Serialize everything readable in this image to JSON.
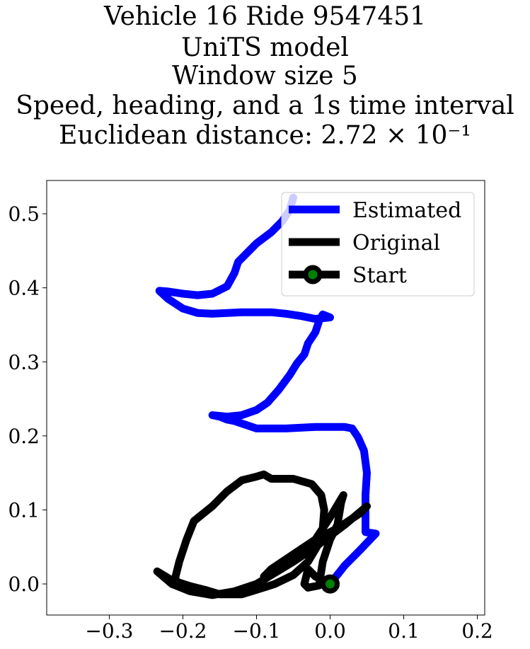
{
  "title_lines": [
    "Vehicle 16 Ride 9547451",
    "UniTS model",
    "Window size 5",
    "Speed, heading, and a 1s time interval",
    "Euclidean distance: 2.72 × 10⁻¹"
  ],
  "chart_data": {
    "type": "line",
    "title": "Vehicle 16 Ride 9547451 / UniTS model / Window size 5 / Speed, heading, and a 1s time interval / Euclidean distance: 2.72 × 10⁻¹",
    "xlabel": "",
    "ylabel": "",
    "xlim": [
      -0.385,
      0.21
    ],
    "ylim": [
      -0.042,
      0.545
    ],
    "xticks": [
      -0.3,
      -0.2,
      -0.1,
      0.0,
      0.1,
      0.2
    ],
    "xtick_labels": [
      "−0.3",
      "−0.2",
      "−0.1",
      "0.0",
      "0.1",
      "0.2"
    ],
    "yticks": [
      0.0,
      0.1,
      0.2,
      0.3,
      0.4,
      0.5
    ],
    "ytick_labels": [
      "0.0",
      "0.1",
      "0.2",
      "0.3",
      "0.4",
      "0.5"
    ],
    "grid": false,
    "legend_position": "top-right",
    "series": [
      {
        "name": "Estimated",
        "color": "#0000ff",
        "points": [
          [
            0.0,
            0.0
          ],
          [
            0.02,
            0.025
          ],
          [
            0.04,
            0.045
          ],
          [
            0.062,
            0.068
          ],
          [
            0.048,
            0.07
          ],
          [
            0.048,
            0.12
          ],
          [
            0.05,
            0.15
          ],
          [
            0.046,
            0.18
          ],
          [
            0.038,
            0.198
          ],
          [
            0.03,
            0.21
          ],
          [
            0.02,
            0.212
          ],
          [
            0.01,
            0.212
          ],
          [
            -0.02,
            0.212
          ],
          [
            -0.06,
            0.21
          ],
          [
            -0.1,
            0.21
          ],
          [
            -0.13,
            0.22
          ],
          [
            -0.14,
            0.222
          ],
          [
            -0.15,
            0.226
          ],
          [
            -0.16,
            0.228
          ],
          [
            -0.14,
            0.226
          ],
          [
            -0.12,
            0.228
          ],
          [
            -0.1,
            0.235
          ],
          [
            -0.085,
            0.245
          ],
          [
            -0.07,
            0.262
          ],
          [
            -0.055,
            0.282
          ],
          [
            -0.045,
            0.298
          ],
          [
            -0.035,
            0.31
          ],
          [
            -0.03,
            0.325
          ],
          [
            -0.02,
            0.34
          ],
          [
            -0.015,
            0.355
          ],
          [
            -0.01,
            0.364
          ],
          [
            0.0,
            0.36
          ],
          [
            -0.02,
            0.358
          ],
          [
            -0.04,
            0.362
          ],
          [
            -0.06,
            0.365
          ],
          [
            -0.08,
            0.367
          ],
          [
            -0.1,
            0.367
          ],
          [
            -0.12,
            0.367
          ],
          [
            -0.16,
            0.365
          ],
          [
            -0.18,
            0.366
          ],
          [
            -0.2,
            0.372
          ],
          [
            -0.22,
            0.385
          ],
          [
            -0.232,
            0.396
          ],
          [
            -0.22,
            0.395
          ],
          [
            -0.2,
            0.392
          ],
          [
            -0.18,
            0.39
          ],
          [
            -0.16,
            0.392
          ],
          [
            -0.14,
            0.402
          ],
          [
            -0.13,
            0.42
          ],
          [
            -0.125,
            0.435
          ],
          [
            -0.115,
            0.445
          ],
          [
            -0.1,
            0.46
          ],
          [
            -0.08,
            0.475
          ],
          [
            -0.065,
            0.49
          ],
          [
            -0.055,
            0.505
          ],
          [
            -0.05,
            0.522
          ]
        ]
      },
      {
        "name": "Original",
        "color": "#000000",
        "points": [
          [
            0.0,
            0.0
          ],
          [
            -0.02,
            0.01
          ],
          [
            -0.03,
            0.02
          ],
          [
            -0.035,
            0.0
          ],
          [
            -0.03,
            -0.005
          ],
          [
            -0.015,
            -0.002
          ],
          [
            -0.01,
            0.03
          ],
          [
            0.0,
            0.06
          ],
          [
            0.01,
            0.08
          ],
          [
            0.015,
            0.11
          ],
          [
            0.018,
            0.12
          ],
          [
            0.0,
            0.09
          ],
          [
            -0.02,
            0.06
          ],
          [
            -0.04,
            0.045
          ],
          [
            -0.07,
            0.025
          ],
          [
            -0.09,
            0.01
          ],
          [
            -0.08,
            0.02
          ],
          [
            -0.05,
            0.04
          ],
          [
            -0.02,
            0.06
          ],
          [
            0.01,
            0.075
          ],
          [
            0.04,
            0.095
          ],
          [
            0.05,
            0.105
          ],
          [
            0.02,
            0.08
          ],
          [
            -0.02,
            0.05
          ],
          [
            -0.05,
            0.03
          ],
          [
            -0.075,
            0.015
          ],
          [
            -0.1,
            0.0
          ],
          [
            -0.13,
            -0.01
          ],
          [
            -0.16,
            -0.015
          ],
          [
            -0.19,
            -0.01
          ],
          [
            -0.215,
            0.0
          ],
          [
            -0.235,
            0.017
          ],
          [
            -0.215,
            0.005
          ],
          [
            -0.19,
            -0.003
          ],
          [
            -0.17,
            -0.008
          ],
          [
            -0.15,
            -0.014
          ],
          [
            -0.12,
            -0.014
          ],
          [
            -0.1,
            -0.008
          ],
          [
            -0.075,
            0.0
          ],
          [
            -0.05,
            0.012
          ],
          [
            -0.03,
            0.03
          ],
          [
            -0.015,
            0.055
          ],
          [
            -0.01,
            0.075
          ],
          [
            -0.008,
            0.1
          ],
          [
            -0.012,
            0.12
          ],
          [
            -0.025,
            0.135
          ],
          [
            -0.05,
            0.142
          ],
          [
            -0.08,
            0.142
          ],
          [
            -0.09,
            0.148
          ],
          [
            -0.1,
            0.145
          ],
          [
            -0.12,
            0.14
          ],
          [
            -0.14,
            0.125
          ],
          [
            -0.16,
            0.105
          ],
          [
            -0.185,
            0.085
          ],
          [
            -0.195,
            0.06
          ],
          [
            -0.205,
            0.03
          ],
          [
            -0.21,
            0.01
          ],
          [
            -0.21,
            0.0
          ]
        ]
      }
    ],
    "start_point": {
      "name": "Start",
      "x": 0.0,
      "y": 0.0,
      "marker_color": "#008000",
      "edge_color": "#000000"
    }
  }
}
